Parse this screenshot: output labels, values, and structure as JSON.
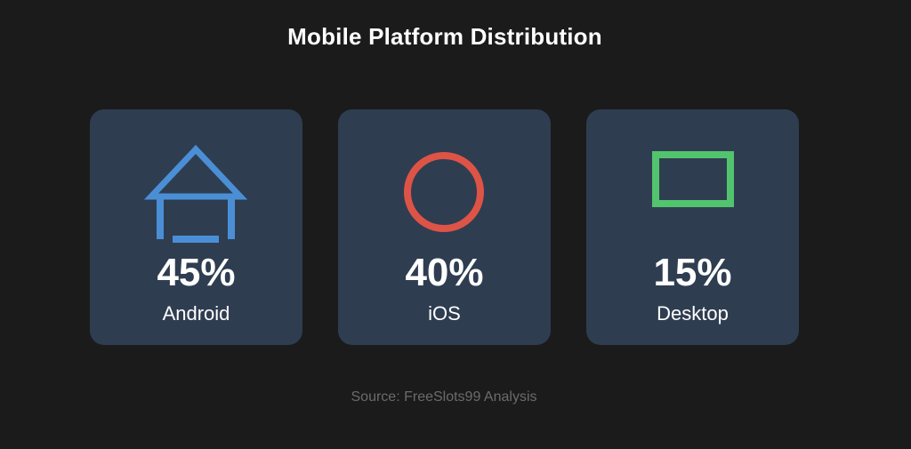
{
  "chart_data": {
    "type": "table",
    "title": "Mobile Platform Distribution",
    "categories": [
      "Android",
      "iOS",
      "Desktop"
    ],
    "values": [
      45,
      40,
      15
    ],
    "value_labels": [
      "45%",
      "40%",
      "15%"
    ],
    "unit": "%",
    "colors": [
      "#4a8fd6",
      "#dd5446",
      "#52c46e"
    ],
    "icons": [
      "house-icon",
      "circle-icon",
      "rectangle-icon"
    ],
    "source": "Source: FreeSlots99 Analysis"
  },
  "colors": {
    "background": "#1b1b1b",
    "card": "#2f3d51",
    "source_text": "#6b6b6b"
  }
}
